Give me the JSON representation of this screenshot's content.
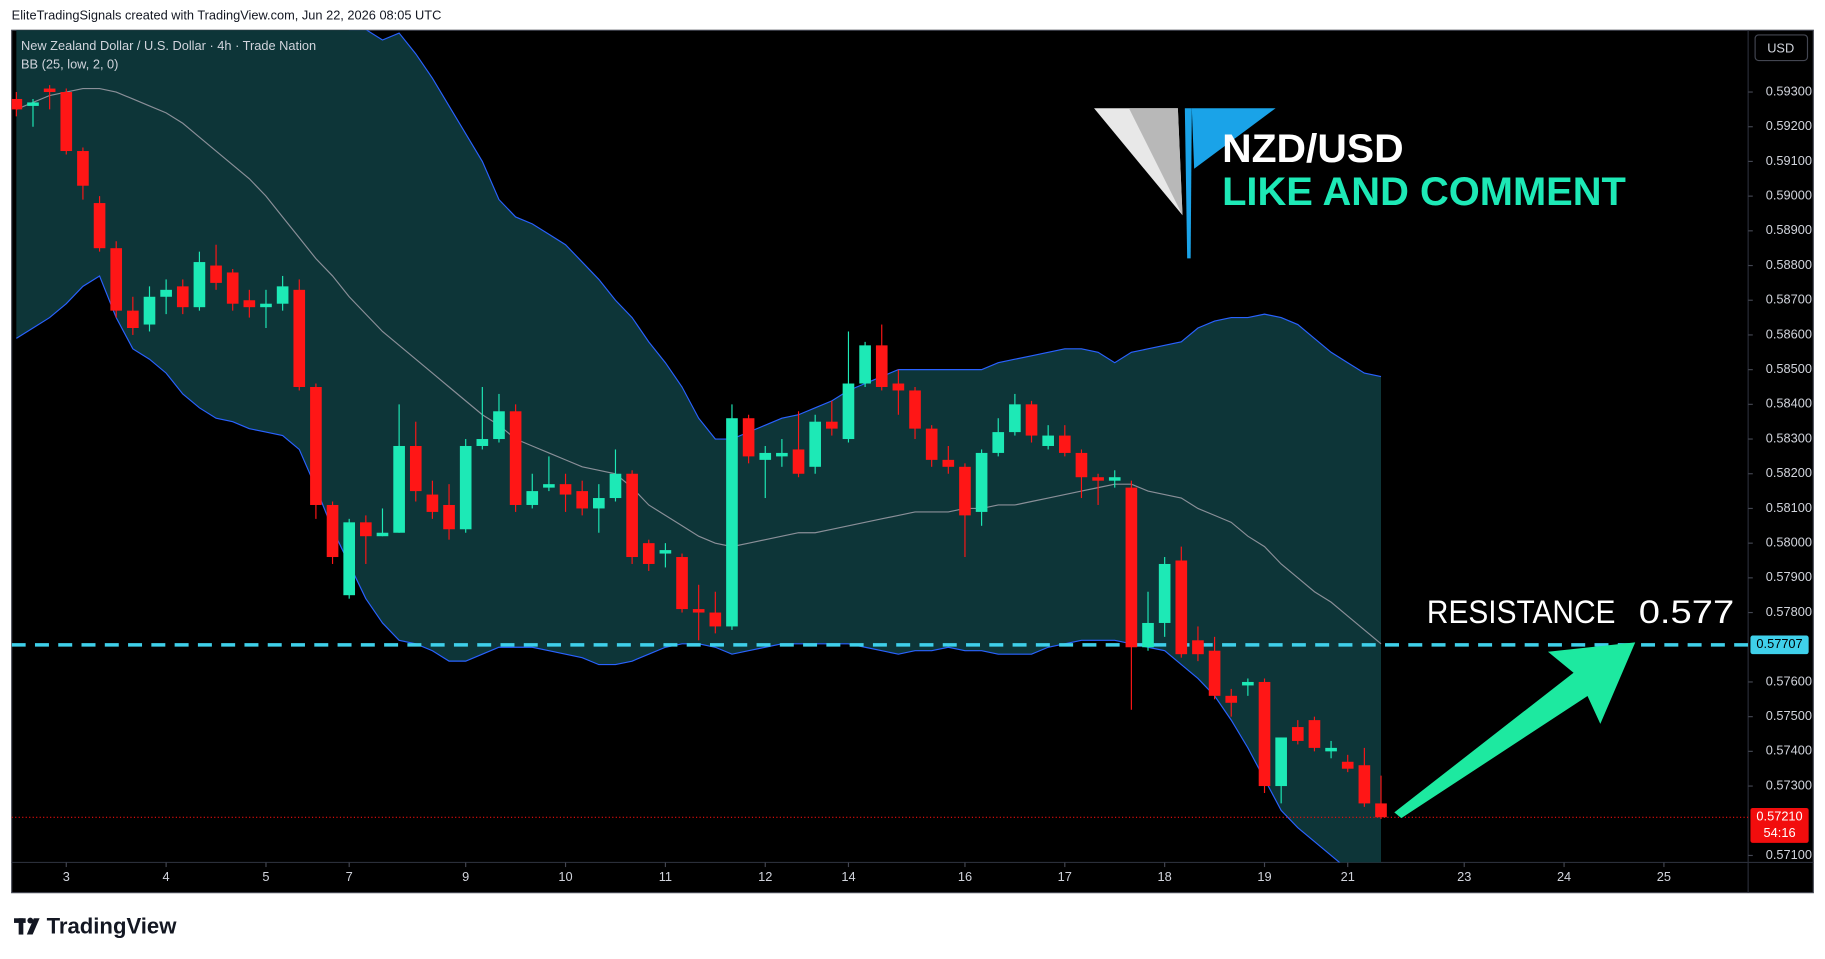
{
  "header": "EliteTradingSignals created with TradingView.com, Jun 22, 2026 08:05 UTC",
  "currency_button": "USD",
  "branding": "TradingView",
  "overlay": {
    "pair": "NZD/USD",
    "call_to_action": "LIKE AND COMMENT"
  },
  "chart_data": {
    "type": "candlestick",
    "title": "New Zealand Dollar / U.S. Dollar · 4h · Trade Nation",
    "up_color": "#1de9b6",
    "down_color": "#ff1616",
    "xlim": [
      -0.28,
      104.06
    ],
    "xticks": [
      {
        "value": 3,
        "label": "3"
      },
      {
        "value": 9,
        "label": "4"
      },
      {
        "value": 15,
        "label": "5"
      },
      {
        "value": 20,
        "label": "7"
      },
      {
        "value": 27,
        "label": "9"
      },
      {
        "value": 33,
        "label": "10"
      },
      {
        "value": 39,
        "label": "11"
      },
      {
        "value": 45,
        "label": "12"
      },
      {
        "value": 50,
        "label": "14"
      },
      {
        "value": 57,
        "label": "16"
      },
      {
        "value": 63,
        "label": "17"
      },
      {
        "value": 69,
        "label": "18"
      },
      {
        "value": 75,
        "label": "19"
      },
      {
        "value": 80,
        "label": "21"
      },
      {
        "value": 87,
        "label": "23"
      },
      {
        "value": 93,
        "label": "24"
      },
      {
        "value": 99,
        "label": "25"
      }
    ],
    "ylim": [
      0.5708,
      0.59478
    ],
    "yticks": [
      {
        "value": 0.571,
        "label": "0.57100"
      },
      {
        "value": 0.573,
        "label": "0.57300"
      },
      {
        "value": 0.574,
        "label": "0.57400"
      },
      {
        "value": 0.575,
        "label": "0.57500"
      },
      {
        "value": 0.576,
        "label": "0.57600"
      },
      {
        "value": 0.578,
        "label": "0.57800"
      },
      {
        "value": 0.579,
        "label": "0.57900"
      },
      {
        "value": 0.58,
        "label": "0.58000"
      },
      {
        "value": 0.581,
        "label": "0.58100"
      },
      {
        "value": 0.582,
        "label": "0.58200"
      },
      {
        "value": 0.583,
        "label": "0.58300"
      },
      {
        "value": 0.584,
        "label": "0.58400"
      },
      {
        "value": 0.585,
        "label": "0.58500"
      },
      {
        "value": 0.586,
        "label": "0.58600"
      },
      {
        "value": 0.587,
        "label": "0.58700"
      },
      {
        "value": 0.588,
        "label": "0.58800"
      },
      {
        "value": 0.589,
        "label": "0.58900"
      },
      {
        "value": 0.59,
        "label": "0.59000"
      },
      {
        "value": 0.591,
        "label": "0.59100"
      },
      {
        "value": 0.592,
        "label": "0.59200"
      },
      {
        "value": 0.593,
        "label": "0.59300"
      }
    ],
    "grid": false,
    "open": [
      0.5928,
      0.5926,
      0.5931,
      0.593,
      0.5913,
      0.5898,
      0.5885,
      0.5867,
      0.5863,
      0.5871,
      0.5874,
      0.5868,
      0.588,
      0.5878,
      0.587,
      0.5868,
      0.5869,
      0.5873,
      0.5845,
      0.5811,
      0.5785,
      0.5806,
      0.5802,
      0.5803,
      0.5828,
      0.5814,
      0.5811,
      0.5804,
      0.5828,
      0.583,
      0.5838,
      0.5811,
      0.5816,
      0.5817,
      0.5815,
      0.581,
      0.5813,
      0.582,
      0.58,
      0.5797,
      0.5796,
      0.5781,
      0.578,
      0.5776,
      0.5836,
      0.5824,
      0.5825,
      0.5827,
      0.5822,
      0.5835,
      0.583,
      0.5846,
      0.5857,
      0.5846,
      0.5844,
      0.5833,
      0.5824,
      0.5822,
      0.5809,
      0.5826,
      0.5832,
      0.584,
      0.5828,
      0.5831,
      0.5826,
      0.5819,
      0.5818,
      0.5816,
      0.577,
      0.5777,
      0.5795,
      0.5772,
      0.5769,
      0.5756,
      0.5759,
      0.576,
      0.573,
      0.5747,
      0.5749,
      0.574,
      0.5737,
      0.5736,
      0.5725
    ],
    "high": [
      0.593,
      0.5928,
      0.5932,
      0.5931,
      0.5914,
      0.59,
      0.5887,
      0.5871,
      0.5874,
      0.5876,
      0.5876,
      0.5884,
      0.5886,
      0.5879,
      0.5873,
      0.5873,
      0.5877,
      0.5876,
      0.5846,
      0.5812,
      0.5807,
      0.5808,
      0.581,
      0.584,
      0.5835,
      0.5818,
      0.5817,
      0.583,
      0.5845,
      0.5843,
      0.584,
      0.582,
      0.5825,
      0.582,
      0.5818,
      0.5817,
      0.5827,
      0.5821,
      0.5801,
      0.58,
      0.5797,
      0.5788,
      0.5786,
      0.584,
      0.5837,
      0.5828,
      0.583,
      0.5838,
      0.5837,
      0.5841,
      0.5861,
      0.5858,
      0.5863,
      0.585,
      0.5845,
      0.5834,
      0.5828,
      0.5823,
      0.5827,
      0.5836,
      0.5843,
      0.5841,
      0.5834,
      0.5834,
      0.5827,
      0.582,
      0.5821,
      0.5818,
      0.5786,
      0.5796,
      0.5799,
      0.5776,
      0.5773,
      0.5758,
      0.5761,
      0.5761,
      0.5744,
      0.5749,
      0.575,
      0.5743,
      0.5739,
      0.5741,
      0.5733
    ],
    "low": [
      0.5923,
      0.592,
      0.5925,
      0.5912,
      0.5899,
      0.5884,
      0.5865,
      0.586,
      0.5861,
      0.5866,
      0.5866,
      0.5867,
      0.5873,
      0.5867,
      0.5865,
      0.5862,
      0.5867,
      0.5844,
      0.5807,
      0.5794,
      0.5784,
      0.5794,
      0.5802,
      0.5803,
      0.5812,
      0.5807,
      0.5801,
      0.5803,
      0.5827,
      0.5829,
      0.5809,
      0.581,
      0.5815,
      0.5809,
      0.5808,
      0.5803,
      0.5812,
      0.5794,
      0.5792,
      0.5793,
      0.578,
      0.5772,
      0.5774,
      0.5775,
      0.5823,
      0.5813,
      0.5822,
      0.5819,
      0.582,
      0.5831,
      0.5829,
      0.5845,
      0.5844,
      0.5837,
      0.583,
      0.5822,
      0.582,
      0.5796,
      0.5805,
      0.5825,
      0.5831,
      0.5829,
      0.5827,
      0.5825,
      0.5813,
      0.5811,
      0.5816,
      0.5752,
      0.5769,
      0.5773,
      0.5767,
      0.5766,
      0.5755,
      0.575,
      0.5756,
      0.5728,
      0.5725,
      0.5742,
      0.574,
      0.5738,
      0.5734,
      0.5724,
      0.57205
    ],
    "close": [
      0.5925,
      0.5927,
      0.593,
      0.5913,
      0.5903,
      0.5885,
      0.5867,
      0.5862,
      0.5871,
      0.5873,
      0.5868,
      0.5881,
      0.5875,
      0.5869,
      0.5868,
      0.5869,
      0.5874,
      0.5845,
      0.5811,
      0.5796,
      0.5806,
      0.5802,
      0.5803,
      0.5828,
      0.5815,
      0.5809,
      0.5804,
      0.5828,
      0.583,
      0.5838,
      0.5811,
      0.5815,
      0.5817,
      0.5814,
      0.581,
      0.5813,
      0.582,
      0.5796,
      0.5794,
      0.5798,
      0.5781,
      0.578,
      0.5776,
      0.5836,
      0.5825,
      0.5826,
      0.5826,
      0.582,
      0.5835,
      0.5833,
      0.5846,
      0.5857,
      0.5845,
      0.5844,
      0.5833,
      0.5824,
      0.5822,
      0.5808,
      0.5826,
      0.5832,
      0.584,
      0.5831,
      0.5831,
      0.5826,
      0.5819,
      0.5818,
      0.5819,
      0.577,
      0.5777,
      0.5794,
      0.5768,
      0.5768,
      0.5756,
      0.5754,
      0.576,
      0.573,
      0.5744,
      0.5743,
      0.5741,
      0.5741,
      0.5735,
      0.5725,
      0.5721
    ],
    "bollinger": {
      "label": "BB (25, low, 2, 0)",
      "band_color": "#2962ff",
      "basis_color": "#8a8f98",
      "fill_color": "#0d3538",
      "upper": [
        0.5991,
        0.5992,
        0.5993,
        0.5991,
        0.5988,
        0.5985,
        0.5995,
        0.6,
        0.5999,
        0.5999,
        0.5999,
        0.5995,
        0.599,
        0.5983,
        0.5977,
        0.5968,
        0.5957,
        0.5949,
        0.5948,
        0.595,
        0.5948,
        0.5948,
        0.5945,
        0.5947,
        0.5941,
        0.5934,
        0.5926,
        0.5918,
        0.591,
        0.5899,
        0.5894,
        0.5892,
        0.5889,
        0.5886,
        0.5881,
        0.5876,
        0.587,
        0.5865,
        0.5858,
        0.5852,
        0.5845,
        0.5836,
        0.583,
        0.583,
        0.5832,
        0.5834,
        0.5836,
        0.5837,
        0.5839,
        0.5841,
        0.5844,
        0.5846,
        0.5848,
        0.585,
        0.585,
        0.585,
        0.585,
        0.585,
        0.585,
        0.5852,
        0.5853,
        0.5854,
        0.5855,
        0.5856,
        0.5856,
        0.5855,
        0.5852,
        0.5855,
        0.5856,
        0.5857,
        0.5858,
        0.5862,
        0.5864,
        0.5865,
        0.5865,
        0.5866,
        0.5865,
        0.5863,
        0.5859,
        0.5855,
        0.5852,
        0.5849,
        0.5848
      ],
      "basis": [
        0.5925,
        0.5927,
        0.5929,
        0.593,
        0.5931,
        0.5931,
        0.593,
        0.5928,
        0.5926,
        0.5924,
        0.5921,
        0.5917,
        0.5913,
        0.5909,
        0.5905,
        0.59,
        0.5894,
        0.5888,
        0.5882,
        0.5877,
        0.5871,
        0.5866,
        0.5861,
        0.5857,
        0.5853,
        0.5849,
        0.5845,
        0.5841,
        0.5837,
        0.5834,
        0.583,
        0.5828,
        0.5826,
        0.5824,
        0.5822,
        0.5821,
        0.582,
        0.5816,
        0.5811,
        0.5808,
        0.5805,
        0.5802,
        0.58,
        0.5799,
        0.58,
        0.5801,
        0.5802,
        0.5803,
        0.5803,
        0.5804,
        0.5805,
        0.5806,
        0.5807,
        0.5808,
        0.5809,
        0.5809,
        0.5809,
        0.581,
        0.581,
        0.5811,
        0.5811,
        0.5812,
        0.5813,
        0.5814,
        0.5815,
        0.5816,
        0.5817,
        0.5817,
        0.5815,
        0.5814,
        0.5813,
        0.581,
        0.5808,
        0.5806,
        0.5802,
        0.5799,
        0.5794,
        0.579,
        0.5786,
        0.5783,
        0.5779,
        0.5775,
        0.5771
      ],
      "lower": [
        0.5859,
        0.5862,
        0.5865,
        0.5869,
        0.5874,
        0.5877,
        0.5865,
        0.5856,
        0.5853,
        0.5849,
        0.5843,
        0.5839,
        0.5836,
        0.5835,
        0.5833,
        0.5832,
        0.5831,
        0.5827,
        0.5816,
        0.5804,
        0.5794,
        0.5784,
        0.5777,
        0.5772,
        0.5771,
        0.5769,
        0.5766,
        0.5766,
        0.5768,
        0.577,
        0.577,
        0.577,
        0.5769,
        0.5768,
        0.5767,
        0.5765,
        0.5765,
        0.5766,
        0.5768,
        0.577,
        0.5771,
        0.5771,
        0.577,
        0.5768,
        0.5769,
        0.577,
        0.5771,
        0.5771,
        0.5771,
        0.5771,
        0.5771,
        0.577,
        0.5769,
        0.5768,
        0.5769,
        0.5769,
        0.577,
        0.5769,
        0.5769,
        0.5768,
        0.5768,
        0.5768,
        0.577,
        0.5771,
        0.5772,
        0.5772,
        0.5772,
        0.5771,
        0.577,
        0.5769,
        0.5765,
        0.5761,
        0.5756,
        0.5749,
        0.5741,
        0.5732,
        0.5723,
        0.5718,
        0.5714,
        0.571,
        0.5706,
        0.5704,
        0.5702
      ]
    },
    "price_line": {
      "value": 0.57707,
      "label": "0.57707",
      "color": "#3fd0ea"
    },
    "last_price": {
      "value": 0.5721,
      "label": "0.57210",
      "countdown": "54:16",
      "color": "#f20d0d"
    },
    "resistance": {
      "text": "RESISTANCE",
      "level": 0.577
    }
  }
}
